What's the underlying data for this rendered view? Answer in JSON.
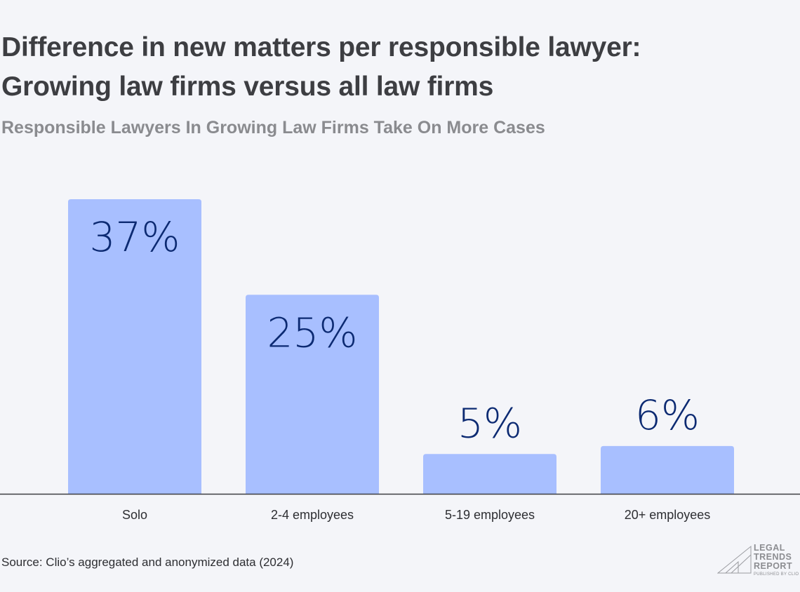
{
  "header": {
    "title_line1": "Difference in new matters per responsible lawyer:",
    "title_line2": "Growing law firms versus all law firms",
    "subtitle": "Responsible Lawyers In Growing Law Firms Take On More Cases"
  },
  "chart_data": {
    "type": "bar",
    "title": "Difference in new matters per responsible lawyer: Growing law firms versus all law firms",
    "subtitle": "Responsible Lawyers In Growing Law Firms Take On More Cases",
    "categories": [
      "Solo",
      "2-4 employees",
      "5-19 employees",
      "20+ employees"
    ],
    "values": [
      37,
      25,
      5,
      6
    ],
    "data_labels": [
      "37%",
      "25%",
      "5%",
      "6%"
    ],
    "unit": "%",
    "xlabel": "",
    "ylabel": "",
    "grid": false,
    "colors": {
      "bar": "#a8bfff",
      "label": "#0c2a72",
      "axis": "#3d3e42"
    }
  },
  "footer": {
    "source": "Source: Clio’s aggregated and anonymized data (2024)",
    "logo": {
      "line1": "LEGAL",
      "line2": "TRENDS",
      "line3": "REPORT",
      "sub": "PUBLISHED BY CLIO"
    }
  }
}
